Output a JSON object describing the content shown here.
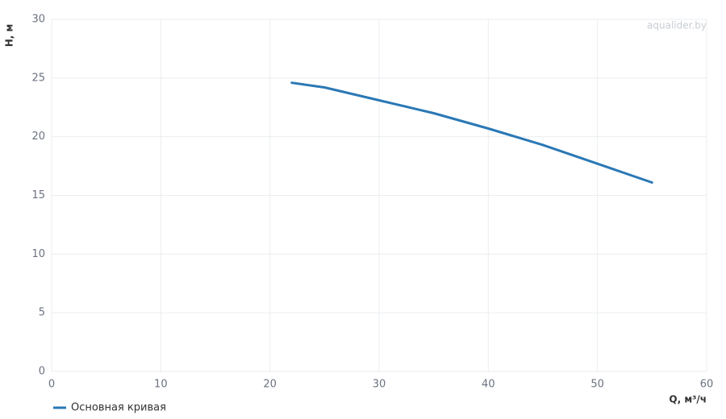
{
  "chart_data": {
    "type": "line",
    "x_label": "Q, м³/ч",
    "y_label": "H, м",
    "watermark": "aqualider.by",
    "x": [
      22,
      25,
      30,
      35,
      40,
      45,
      50,
      55
    ],
    "series": [
      {
        "name": "Основная кривая",
        "color": "#2a78b5",
        "values": [
          24.6,
          24.2,
          23.1,
          22.0,
          20.7,
          19.3,
          17.7,
          16.1
        ]
      }
    ],
    "xlim": [
      0,
      60
    ],
    "xticks": [
      0,
      10,
      20,
      30,
      40,
      50,
      60
    ],
    "ylim": [
      0,
      30
    ],
    "yticks": [
      0,
      5,
      10,
      15,
      20,
      25,
      30
    ],
    "grid": true,
    "legend": "bottom-left"
  }
}
